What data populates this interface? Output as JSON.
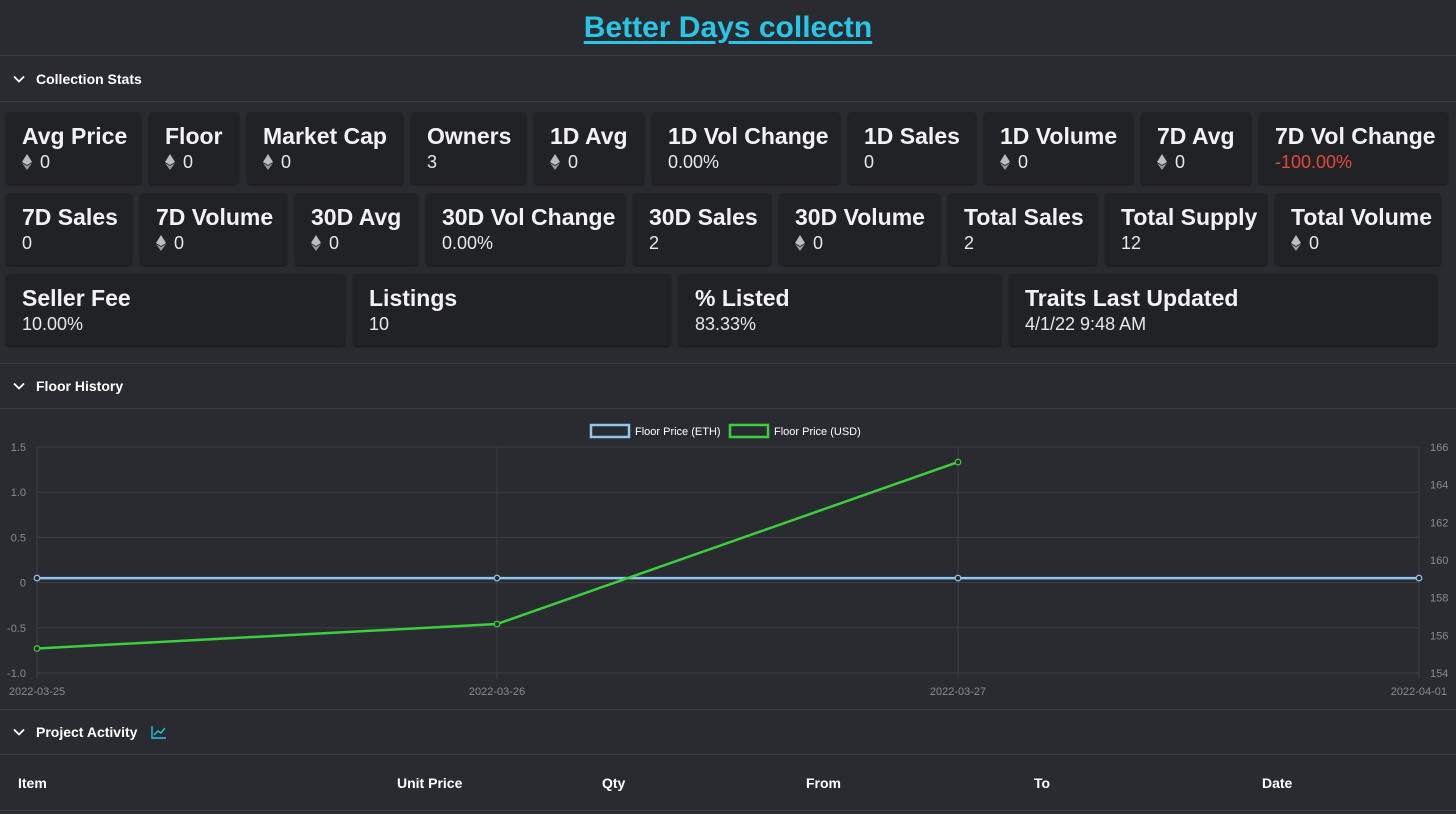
{
  "title": "Better Days collectn",
  "sections": {
    "stats": "Collection Stats",
    "floor": "Floor History",
    "activity": "Project Activity"
  },
  "stats_rows": [
    [
      {
        "label": "Avg Price",
        "value": "0",
        "eth": true,
        "w": 135
      },
      {
        "label": "Floor",
        "value": "0",
        "eth": true,
        "w": 90
      },
      {
        "label": "Market Cap",
        "value": "0",
        "eth": true,
        "w": 156
      },
      {
        "label": "Owners",
        "value": "3",
        "eth": false,
        "w": 115
      },
      {
        "label": "1D Avg",
        "value": "0",
        "eth": true,
        "w": 110
      },
      {
        "label": "1D Vol Change",
        "value": "0.00%",
        "eth": false,
        "w": 188
      },
      {
        "label": "1D Sales",
        "value": "0",
        "eth": false,
        "w": 128
      },
      {
        "label": "1D Volume",
        "value": "0",
        "eth": true,
        "w": 149
      },
      {
        "label": "7D Avg",
        "value": "0",
        "eth": true,
        "w": 110
      },
      {
        "label": "7D Vol Change",
        "value": "-100.00%",
        "eth": false,
        "w": 189,
        "negative": true
      }
    ],
    [
      {
        "label": "7D Sales",
        "value": "0",
        "eth": false,
        "w": 126
      },
      {
        "label": "7D Volume",
        "value": "0",
        "eth": true,
        "w": 147
      },
      {
        "label": "30D Avg",
        "value": "0",
        "eth": true,
        "w": 123
      },
      {
        "label": "30D Vol Change",
        "value": "0.00%",
        "eth": false,
        "w": 199
      },
      {
        "label": "30D Sales",
        "value": "2",
        "eth": false,
        "w": 138
      },
      {
        "label": "30D Volume",
        "value": "0",
        "eth": true,
        "w": 161
      },
      {
        "label": "Total Sales",
        "value": "2",
        "eth": false,
        "w": 149
      },
      {
        "label": "Total Supply",
        "value": "12",
        "eth": false,
        "w": 162
      },
      {
        "label": "Total Volume",
        "value": "0",
        "eth": true,
        "w": 166
      }
    ],
    [
      {
        "label": "Seller Fee",
        "value": "10.00%",
        "eth": false,
        "w": 339
      },
      {
        "label": "Listings",
        "value": "10",
        "eth": false,
        "w": 318
      },
      {
        "label": "% Listed",
        "value": "83.33%",
        "eth": false,
        "w": 322
      },
      {
        "label": "Traits Last Updated",
        "value": "4/1/22 9:48 AM",
        "eth": false,
        "w": 428
      }
    ]
  ],
  "chart_data": {
    "type": "line",
    "x": [
      "2022-03-25",
      "2022-03-26",
      "2022-03-27",
      "2022-04-01"
    ],
    "series": [
      {
        "name": "Floor Price (ETH)",
        "axis": "left",
        "color": "#8ec7f0",
        "values": [
          0.05,
          0.05,
          0.05,
          0.05
        ]
      },
      {
        "name": "Floor Price (USD)",
        "axis": "right",
        "color": "#3ccf3c",
        "values": [
          155.3,
          156.6,
          165.2,
          null
        ]
      }
    ],
    "y_left": {
      "min": -1.0,
      "max": 1.5,
      "ticks": [
        "1.5",
        "1.0",
        "0.5",
        "0",
        "-0.5",
        "-1.0"
      ]
    },
    "y_right": {
      "min": 154,
      "max": 166,
      "ticks": [
        "166",
        "164",
        "162",
        "160",
        "158",
        "156",
        "154"
      ]
    },
    "legend": "top-center",
    "grid": true
  },
  "table": {
    "columns": [
      "Item",
      "Unit Price",
      "Qty",
      "From",
      "To",
      "Date"
    ]
  }
}
